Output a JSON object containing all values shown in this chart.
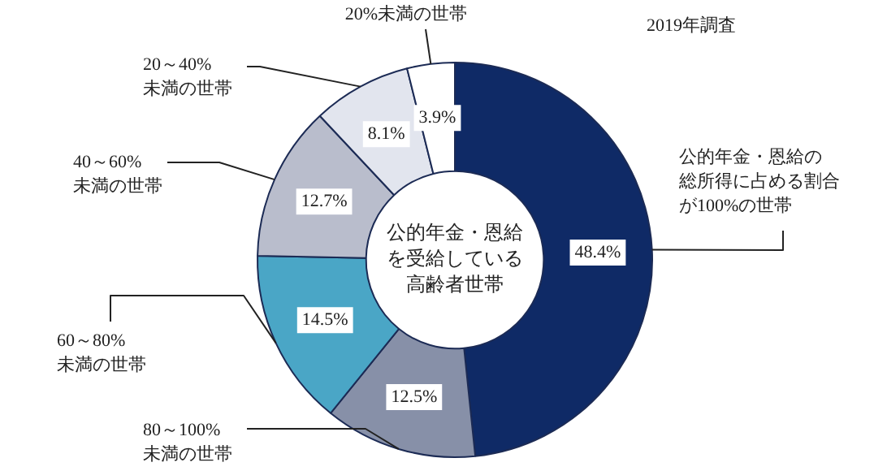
{
  "chart_data": {
    "type": "donut",
    "categories": [
      "公的年金・恩給の総所得に占める割合が100%の世帯",
      "80～100%未満の世帯",
      "60～80%未満の世帯",
      "40～60%未満の世帯",
      "20～40%未満の世帯",
      "20%未満の世帯"
    ],
    "values": [
      48.4,
      12.5,
      14.5,
      12.7,
      8.1,
      3.9
    ],
    "colors": [
      "#0f2a66",
      "#8790a8",
      "#4aa6c6",
      "#b9bdcc",
      "#e2e5ee",
      "#ffffff"
    ],
    "value_labels": [
      "48.4%",
      "12.5%",
      "14.5%",
      "12.7%",
      "8.1%",
      "3.9%"
    ],
    "annotations": [
      "2019年調査",
      "公的年金・恩給を受給している高齢者世帯"
    ]
  }
}
